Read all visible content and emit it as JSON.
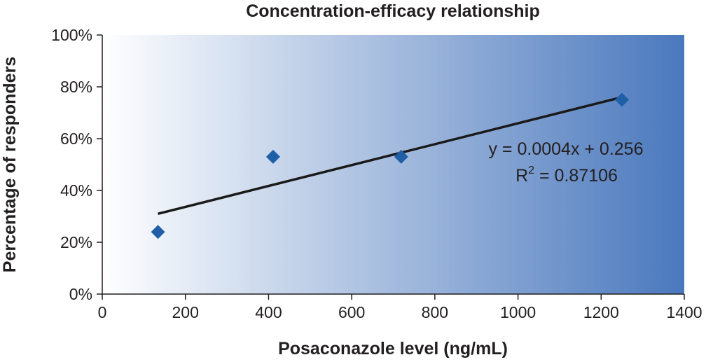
{
  "chart_data": {
    "type": "scatter",
    "title": "Concentration-efficacy relationship",
    "xlabel": "Posaconazole level (ng/mL)",
    "ylabel": "Percentage of responders",
    "xlim": [
      0,
      1400
    ],
    "ylim": [
      0,
      1
    ],
    "x_ticks": [
      0,
      200,
      400,
      600,
      800,
      1000,
      1200,
      1400
    ],
    "x_tick_labels": [
      "0",
      "200",
      "400",
      "600",
      "800",
      "1000",
      "1200",
      "1400"
    ],
    "y_ticks": [
      0,
      0.2,
      0.4,
      0.6,
      0.8,
      1.0
    ],
    "y_tick_labels": [
      "0%",
      "20%",
      "40%",
      "60%",
      "80%",
      "100%"
    ],
    "grid": false,
    "background_gradient": [
      "#ffffff",
      "#4a78bd"
    ],
    "marker_color": "#1f5fa8",
    "marker": "diamond",
    "series": [
      {
        "x": [
          134,
          411,
          719,
          1250
        ],
        "y": [
          0.24,
          0.53,
          0.53,
          0.75
        ]
      }
    ],
    "trendline": {
      "type": "linear",
      "x": [
        134,
        1250
      ],
      "y": [
        0.31,
        0.76
      ]
    },
    "equation_line1": "y = 0.0004x + 0.256",
    "r2_prefix": "R",
    "r2_sup": "2",
    "r2_suffix": " = 0.87106"
  }
}
